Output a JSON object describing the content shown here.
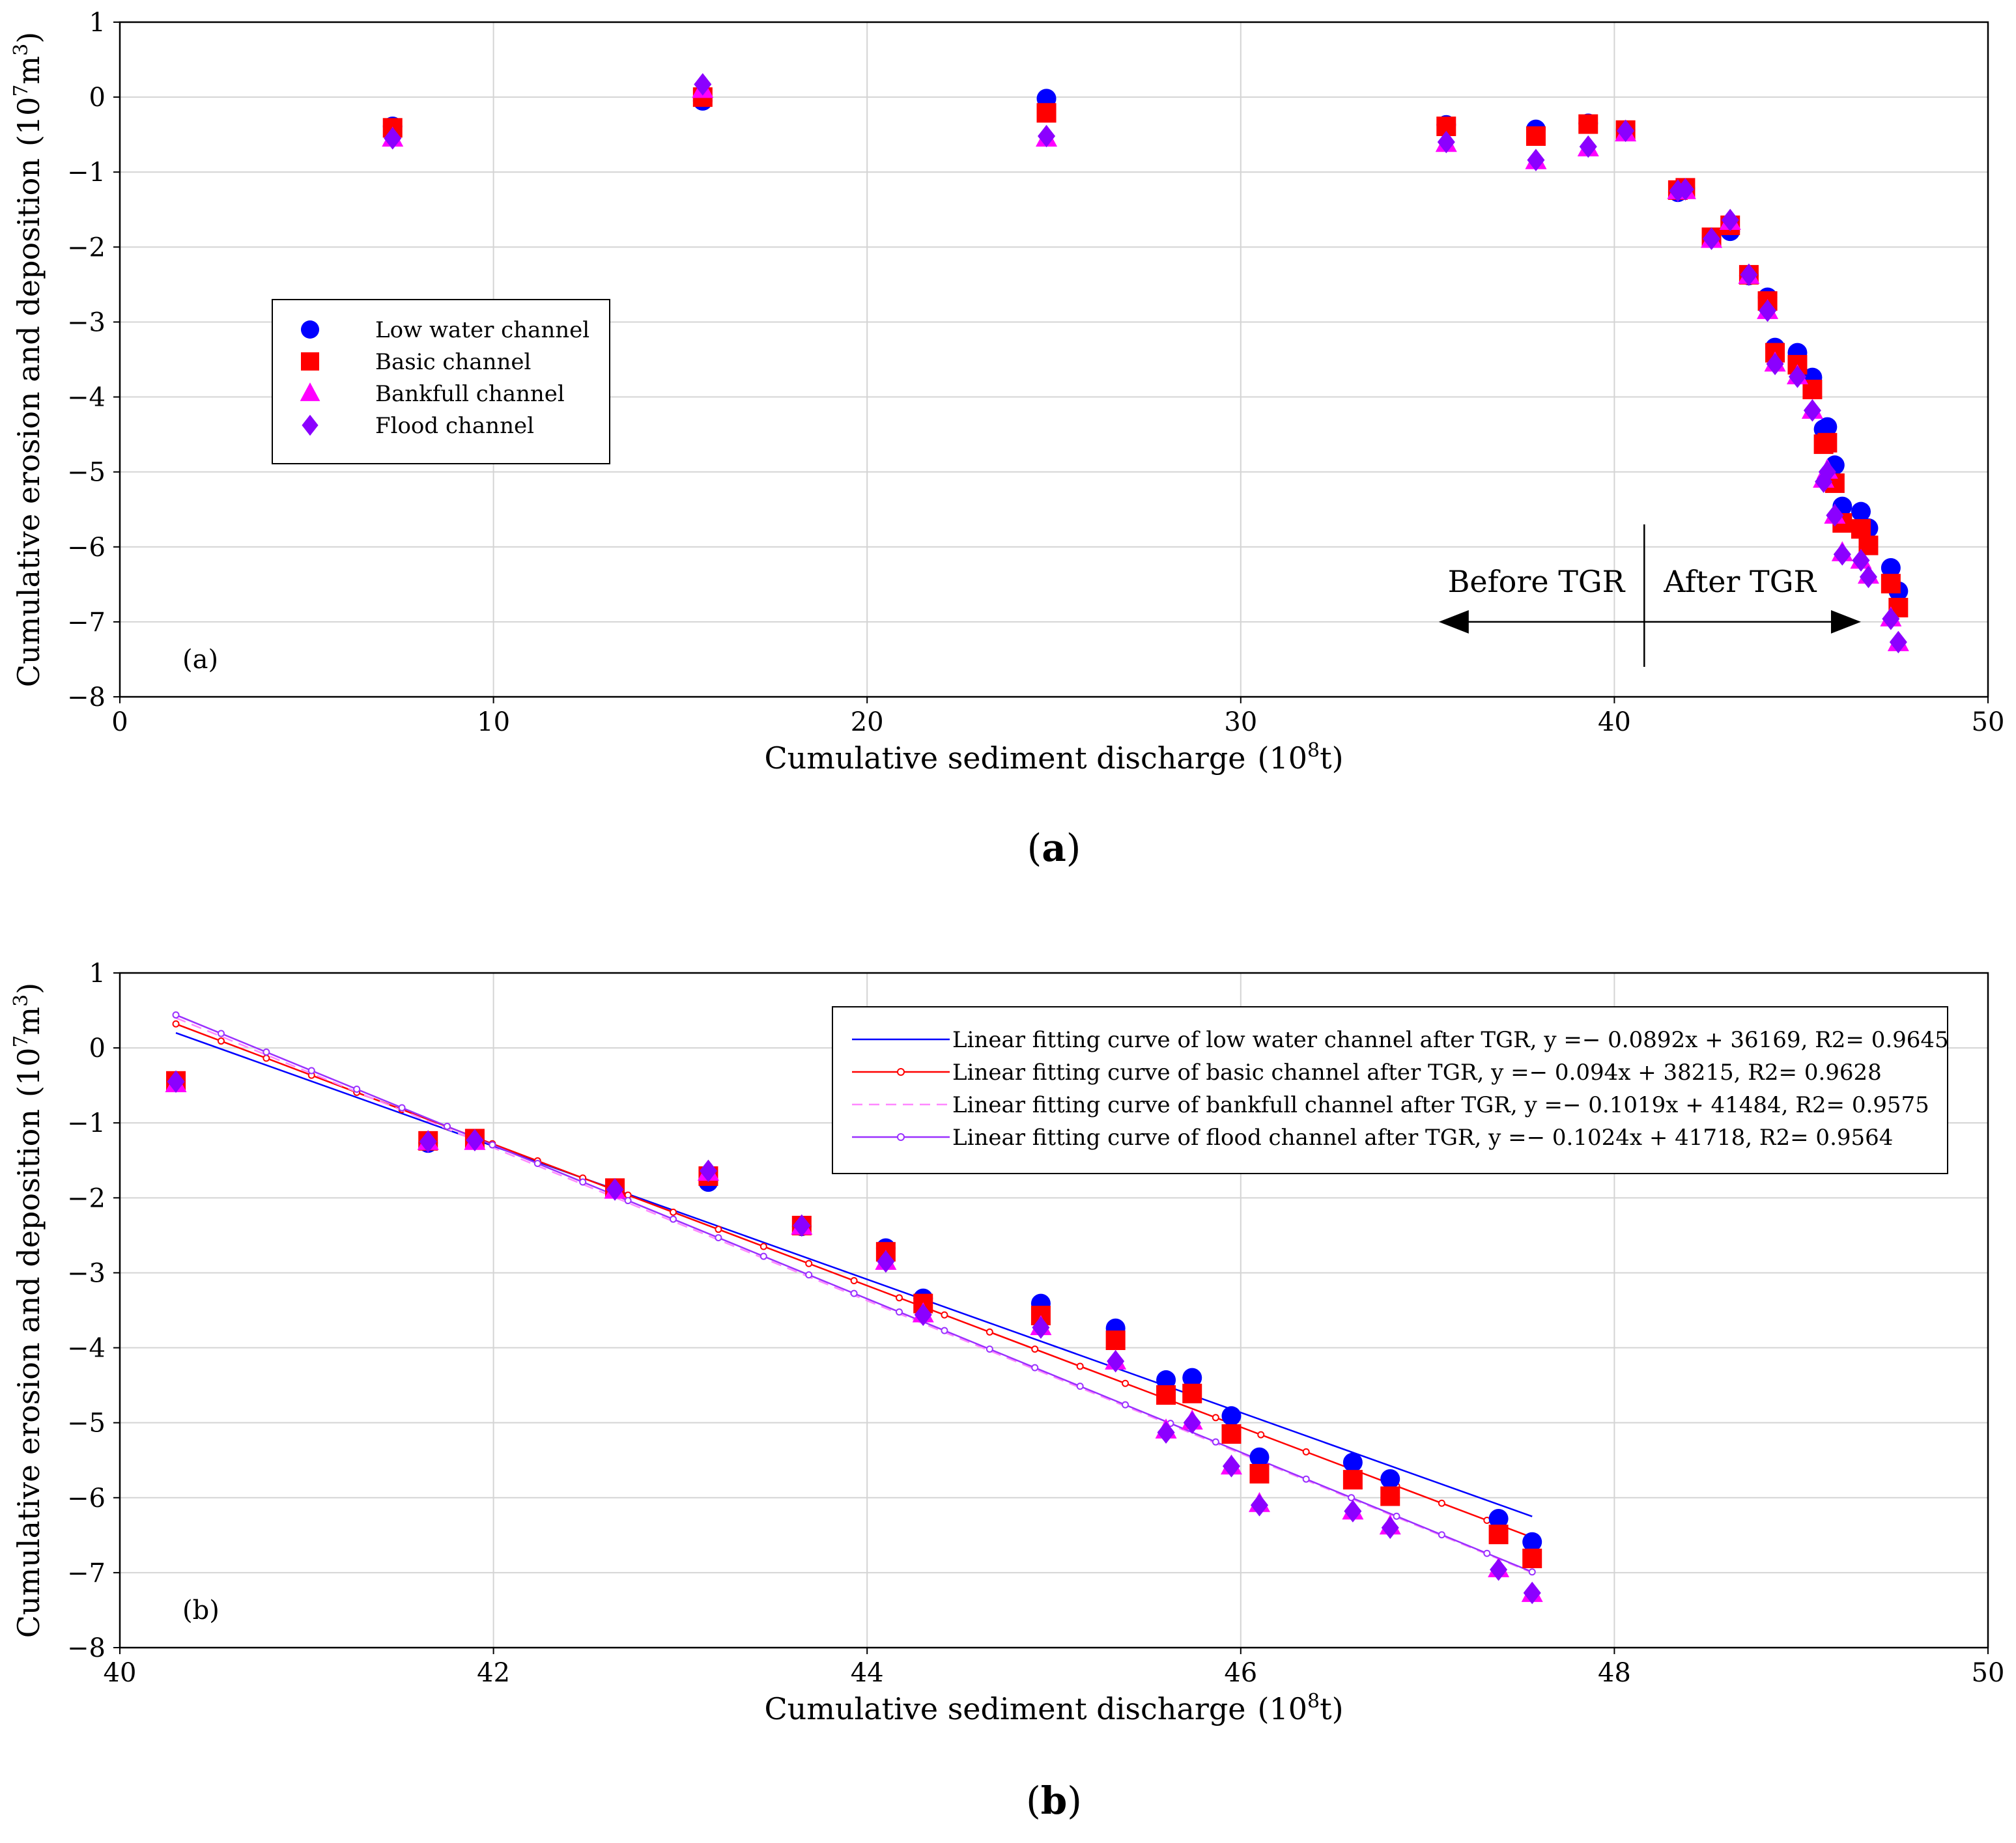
{
  "chart_data": [
    {
      "type": "scatter",
      "id": "a",
      "caption_letter": "a",
      "panel_label": "(a)",
      "xlabel": "Cumulative sediment discharge",
      "xunit_prefix": "(10",
      "xunit_exp": "8",
      "xunit_suffix": "t)",
      "ylabel": "Cumulative erosion and deposition",
      "yunit_prefix": "(10",
      "yunit_exp": "7",
      "yunit_mid": "m",
      "yunit_exp2": "3",
      "yunit_suffix": ")",
      "xlim": [
        0,
        50
      ],
      "ylim": [
        -8,
        1
      ],
      "xticks": [
        0,
        10,
        20,
        30,
        40,
        50
      ],
      "yticks": [
        1,
        0,
        -1,
        -2,
        -3,
        -4,
        -5,
        -6,
        -7,
        -8
      ],
      "grid": true,
      "legend_position": "left",
      "series": [
        {
          "name": "Low water channel",
          "marker": "circle",
          "color": "#0000ff",
          "x": [
            7.3,
            15.6,
            24.8,
            35.5,
            37.9,
            39.3,
            40.3,
            41.7,
            41.9,
            42.6,
            43.1,
            43.6,
            44.1,
            44.3,
            44.9,
            45.3,
            45.6,
            45.7,
            45.9,
            46.1,
            46.6,
            46.8,
            47.4,
            47.6
          ],
          "y": [
            -0.39,
            -0.05,
            -0.02,
            -0.37,
            -0.43,
            -0.35,
            -0.44,
            -1.27,
            -1.22,
            -1.87,
            -1.79,
            -2.38,
            -2.67,
            -3.34,
            -3.41,
            -3.74,
            -4.43,
            -4.4,
            -4.91,
            -5.46,
            -5.53,
            -5.75,
            -6.28,
            -6.59
          ]
        },
        {
          "name": "Basic channel",
          "marker": "square",
          "color": "#ff0000",
          "x": [
            7.3,
            15.6,
            24.8,
            35.5,
            37.9,
            39.3,
            40.3,
            41.7,
            41.9,
            42.6,
            43.1,
            43.6,
            44.1,
            44.3,
            44.9,
            45.3,
            45.6,
            45.7,
            45.9,
            46.1,
            46.6,
            46.8,
            47.4,
            47.6
          ],
          "y": [
            -0.41,
            0.0,
            -0.21,
            -0.39,
            -0.52,
            -0.36,
            -0.44,
            -1.24,
            -1.21,
            -1.87,
            -1.71,
            -2.37,
            -2.72,
            -3.41,
            -3.57,
            -3.9,
            -4.63,
            -4.61,
            -5.15,
            -5.68,
            -5.76,
            -5.98,
            -6.49,
            -6.81
          ]
        },
        {
          "name": "Bankfull channel",
          "marker": "triangle",
          "color": "#ff00ff",
          "x": [
            7.3,
            15.6,
            24.8,
            35.5,
            37.9,
            39.3,
            40.3,
            41.7,
            41.9,
            42.6,
            43.1,
            43.6,
            44.1,
            44.3,
            44.9,
            45.3,
            45.6,
            45.7,
            45.9,
            46.1,
            46.6,
            46.8,
            47.4,
            47.6
          ],
          "y": [
            -0.55,
            0.1,
            -0.55,
            -0.62,
            -0.85,
            -0.68,
            -0.48,
            -1.25,
            -1.25,
            -1.9,
            -1.66,
            -2.38,
            -2.85,
            -3.55,
            -3.72,
            -4.18,
            -5.1,
            -4.98,
            -5.58,
            -6.08,
            -6.18,
            -6.38,
            -6.95,
            -7.28
          ]
        },
        {
          "name": "Flood channel",
          "marker": "diamond",
          "color": "#8b00ff",
          "x": [
            7.3,
            15.6,
            24.8,
            35.5,
            37.9,
            39.3,
            40.3,
            41.7,
            41.9,
            42.6,
            43.1,
            43.6,
            44.1,
            44.3,
            44.9,
            45.3,
            45.6,
            45.7,
            45.9,
            46.1,
            46.6,
            46.8,
            47.4,
            47.6
          ],
          "y": [
            -0.55,
            0.17,
            -0.52,
            -0.6,
            -0.84,
            -0.66,
            -0.45,
            -1.25,
            -1.23,
            -1.89,
            -1.64,
            -2.37,
            -2.85,
            -3.56,
            -3.73,
            -4.18,
            -5.13,
            -5.0,
            -5.58,
            -6.1,
            -6.18,
            -6.4,
            -6.96,
            -7.27
          ]
        }
      ],
      "annotations": {
        "before": "Before TGR",
        "after": "After TGR",
        "divider_x": 40.8,
        "arrow_from": 35.3,
        "arrow_to": 46.6,
        "arrow_y": -7.0
      }
    },
    {
      "type": "scatter",
      "id": "b",
      "caption_letter": "b",
      "panel_label": "(b)",
      "xlabel": "Cumulative sediment discharge",
      "xunit_prefix": "(10",
      "xunit_exp": "8",
      "xunit_suffix": "t)",
      "ylabel": "Cumulative erosion and deposition",
      "yunit_prefix": "(10",
      "yunit_exp": "7",
      "yunit_mid": "m",
      "yunit_exp2": "3",
      "yunit_suffix": ")",
      "xlim": [
        40,
        50
      ],
      "ylim": [
        -8,
        1
      ],
      "xticks": [
        40,
        42,
        44,
        46,
        48,
        50
      ],
      "yticks": [
        1,
        0,
        -1,
        -2,
        -3,
        -4,
        -5,
        -6,
        -7,
        -8
      ],
      "grid": true,
      "legend_position": "top-right",
      "series": [
        {
          "name": "Low water channel",
          "marker": "circle",
          "color": "#0000ff",
          "x": [
            40.3,
            41.65,
            41.9,
            42.65,
            43.15,
            43.65,
            44.1,
            44.3,
            44.93,
            45.33,
            45.6,
            45.74,
            45.95,
            46.1,
            46.6,
            46.8,
            47.38,
            47.56
          ],
          "y": [
            -0.44,
            -1.27,
            -1.22,
            -1.87,
            -1.79,
            -2.38,
            -2.67,
            -3.34,
            -3.41,
            -3.74,
            -4.43,
            -4.4,
            -4.91,
            -5.46,
            -5.53,
            -5.75,
            -6.28,
            -6.59
          ]
        },
        {
          "name": "Basic channel",
          "marker": "square",
          "color": "#ff0000",
          "x": [
            40.3,
            41.65,
            41.9,
            42.65,
            43.15,
            43.65,
            44.1,
            44.3,
            44.93,
            45.33,
            45.6,
            45.74,
            45.95,
            46.1,
            46.6,
            46.8,
            47.38,
            47.56
          ],
          "y": [
            -0.44,
            -1.24,
            -1.21,
            -1.87,
            -1.71,
            -2.37,
            -2.72,
            -3.41,
            -3.57,
            -3.9,
            -4.63,
            -4.61,
            -5.15,
            -5.68,
            -5.76,
            -5.98,
            -6.49,
            -6.81
          ]
        },
        {
          "name": "Bankfull channel",
          "marker": "triangle",
          "color": "#ff00ff",
          "x": [
            40.3,
            41.65,
            41.9,
            42.65,
            43.15,
            43.65,
            44.1,
            44.3,
            44.93,
            45.33,
            45.6,
            45.74,
            45.95,
            46.1,
            46.6,
            46.8,
            47.38,
            47.56
          ],
          "y": [
            -0.48,
            -1.25,
            -1.25,
            -1.9,
            -1.66,
            -2.38,
            -2.85,
            -3.55,
            -3.72,
            -4.18,
            -5.1,
            -4.98,
            -5.58,
            -6.08,
            -6.18,
            -6.38,
            -6.95,
            -7.28
          ]
        },
        {
          "name": "Flood channel",
          "marker": "diamond",
          "color": "#8b00ff",
          "x": [
            40.3,
            41.65,
            41.9,
            42.65,
            43.15,
            43.65,
            44.1,
            44.3,
            44.93,
            45.33,
            45.6,
            45.74,
            45.95,
            46.1,
            46.6,
            46.8,
            47.38,
            47.56
          ],
          "y": [
            -0.45,
            -1.25,
            -1.23,
            -1.89,
            -1.64,
            -2.37,
            -2.85,
            -3.56,
            -3.73,
            -4.18,
            -5.13,
            -5.0,
            -5.58,
            -6.1,
            -6.18,
            -6.4,
            -6.96,
            -7.27
          ]
        }
      ],
      "fits": [
        {
          "label": "Linear fitting curve of low water channel after TGR, y =− 0.0892x + 36169, R2= 0.9645",
          "color": "#0000ff",
          "style": "solid",
          "x": [
            40.3,
            47.56
          ],
          "y": [
            0.2,
            -6.25
          ]
        },
        {
          "label": "Linear fitting curve of basic channel after TGR, y =− 0.094x + 38215, R2= 0.9628",
          "color": "#ff0000",
          "style": "circles",
          "x": [
            40.3,
            47.56
          ],
          "y": [
            0.32,
            -6.53
          ]
        },
        {
          "label": "Linear fitting curve of bankfull channel after TGR, y =− 0.1019x + 41484, R2= 0.9575",
          "color": "#ff88ff",
          "style": "dashed",
          "x": [
            40.3,
            47.56
          ],
          "y": [
            0.4,
            -7.0
          ]
        },
        {
          "label": "Linear fitting curve of flood channel after TGR, y =− 0.1024x + 41718, R2= 0.9564",
          "color": "#9a30ff",
          "style": "circles",
          "x": [
            40.3,
            47.56
          ],
          "y": [
            0.44,
            -6.99
          ]
        }
      ]
    }
  ]
}
